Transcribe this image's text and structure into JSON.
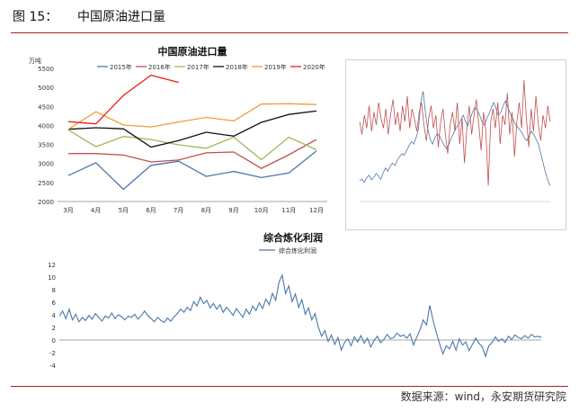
{
  "header": {
    "figure_number": "图 15：",
    "figure_title": "中国原油进口量"
  },
  "footer": {
    "source": "数据来源：wind，永安期货研究院"
  },
  "chart_data": [
    {
      "type": "line",
      "title": "中国原油进口量",
      "ylabel": "万吨",
      "categories": [
        "3月",
        "4月",
        "5月",
        "6月",
        "7月",
        "8月",
        "9月",
        "10月",
        "11月",
        "12月"
      ],
      "ylim": [
        2000,
        5500
      ],
      "yticks": [
        2000,
        2500,
        3000,
        3500,
        4000,
        4500,
        5000,
        5500
      ],
      "legend_position": "top",
      "grid": false,
      "series": [
        {
          "name": "2015年",
          "color": "#4a78a8",
          "values": [
            2680,
            3020,
            2320,
            2950,
            3060,
            2660,
            2790,
            2630,
            2750,
            3330
          ]
        },
        {
          "name": "2016年",
          "color": "#c0504d",
          "values": [
            3260,
            3260,
            3220,
            3040,
            3090,
            3280,
            3300,
            2870,
            3230,
            3630
          ]
        },
        {
          "name": "2017年",
          "color": "#9bbb59",
          "values": [
            3880,
            3440,
            3710,
            3630,
            3490,
            3400,
            3690,
            3100,
            3690,
            3360
          ]
        },
        {
          "name": "2018年",
          "color": "#111111",
          "values": [
            3900,
            3940,
            3910,
            3430,
            3600,
            3820,
            3720,
            4080,
            4290,
            4380
          ]
        },
        {
          "name": "2019年",
          "color": "#f39c3c",
          "values": [
            3900,
            4360,
            4010,
            3960,
            4090,
            4210,
            4120,
            4560,
            4570,
            4550
          ]
        },
        {
          "name": "2020年",
          "color": "#e2231a",
          "values": [
            4100,
            4040,
            4790,
            5320,
            5130,
            null,
            null,
            null,
            null,
            null
          ]
        }
      ]
    },
    {
      "type": "line",
      "ylim": [
        0,
        160
      ],
      "y2lim": [
        -40,
        40
      ],
      "grid": false,
      "series": [
        {
          "color": "#4a78a8",
          "axis": "left",
          "values": [
            26,
            28,
            24,
            30,
            33,
            27,
            30,
            35,
            32,
            28,
            36,
            42,
            38,
            44,
            48,
            45,
            52,
            56,
            60,
            58,
            64,
            70,
            75,
            72,
            80,
            90,
            125,
            138,
            110,
            90,
            78,
            72,
            80,
            85,
            82,
            76,
            70,
            66,
            72,
            80,
            86,
            92,
            96,
            102,
            108,
            100,
            95,
            104,
            112,
            118,
            114,
            108,
            100,
            96,
            104,
            110,
            118,
            124,
            116,
            108,
            112,
            120,
            126,
            118,
            110,
            104,
            98,
            94,
            90,
            86,
            80,
            76,
            82,
            88,
            84,
            78,
            72,
            60,
            48,
            36,
            26,
            20
          ]
        },
        {
          "color": "#c0504d",
          "axis": "right",
          "values": [
            10,
            2,
            14,
            6,
            20,
            4,
            16,
            8,
            22,
            12,
            6,
            18,
            2,
            14,
            24,
            8,
            16,
            4,
            20,
            10,
            26,
            6,
            18,
            12,
            4,
            16,
            22,
            8,
            -2,
            12,
            20,
            6,
            14,
            -6,
            10,
            18,
            2,
            -10,
            8,
            16,
            4,
            22,
            -4,
            12,
            -16,
            6,
            20,
            2,
            14,
            24,
            8,
            -8,
            16,
            4,
            -30,
            10,
            18,
            6,
            22,
            -4,
            14,
            8,
            28,
            2,
            16,
            -12,
            10,
            22,
            6,
            36,
            12,
            -6,
            18,
            4,
            26,
            8,
            -2,
            14,
            6,
            20,
            10
          ]
        }
      ]
    },
    {
      "type": "line",
      "title": "综合炼化利润",
      "ylim": [
        -4,
        12
      ],
      "yticks": [
        -4,
        -2,
        0,
        2,
        4,
        6,
        8,
        10,
        12
      ],
      "legend_position": "top",
      "grid": false,
      "series": [
        {
          "name": "综合炼化利润",
          "color": "#4a78a8",
          "values": [
            3.8,
            4.6,
            3.4,
            4.9,
            3.2,
            4.1,
            2.9,
            3.6,
            3.1,
            3.9,
            3.3,
            4.2,
            3.6,
            3.0,
            3.8,
            3.5,
            4.3,
            3.4,
            4.0,
            3.7,
            3.2,
            3.8,
            3.6,
            4.1,
            3.3,
            3.9,
            4.6,
            3.9,
            3.4,
            2.9,
            3.6,
            3.1,
            2.8,
            3.5,
            3.0,
            3.7,
            4.2,
            4.9,
            4.4,
            5.2,
            4.7,
            6.1,
            5.4,
            6.8,
            5.8,
            6.3,
            5.1,
            5.8,
            4.9,
            5.6,
            4.4,
            5.2,
            4.6,
            3.9,
            5.0,
            4.3,
            3.6,
            4.9,
            4.1,
            5.4,
            4.7,
            5.9,
            5.0,
            6.5,
            5.6,
            7.4,
            6.3,
            9.2,
            10.3,
            7.4,
            8.6,
            6.1,
            7.3,
            5.2,
            6.4,
            4.1,
            5.1,
            3.2,
            4.2,
            2.0,
            0.6,
            1.5,
            -0.2,
            0.8,
            -0.7,
            0.4,
            -1.6,
            -0.4,
            0.2,
            -0.9,
            0.5,
            -0.3,
            0.7,
            -0.5,
            0.3,
            -1.1,
            -0.1,
            0.6,
            -0.4,
            0.1,
            0.9,
            0.2,
            0.4,
            1.1,
            0.6,
            0.8,
            0.3,
            1.0,
            -0.8,
            0.4,
            1.6,
            3.2,
            2.4,
            5.5,
            3.1,
            1.2,
            -0.6,
            -2.2,
            -0.9,
            -1.4,
            -0.2,
            -1.6,
            0.2,
            -0.8,
            -0.3,
            -1.7,
            -0.7,
            0.3,
            -0.5,
            -1.1,
            -2.6,
            -0.9,
            -0.4,
            0.5,
            -0.2,
            0.2,
            -0.4,
            0.6,
            0.1,
            0.8,
            0.4,
            0.2,
            0.7,
            0.3,
            0.9,
            0.5,
            0.6,
            0.4
          ]
        }
      ]
    }
  ]
}
